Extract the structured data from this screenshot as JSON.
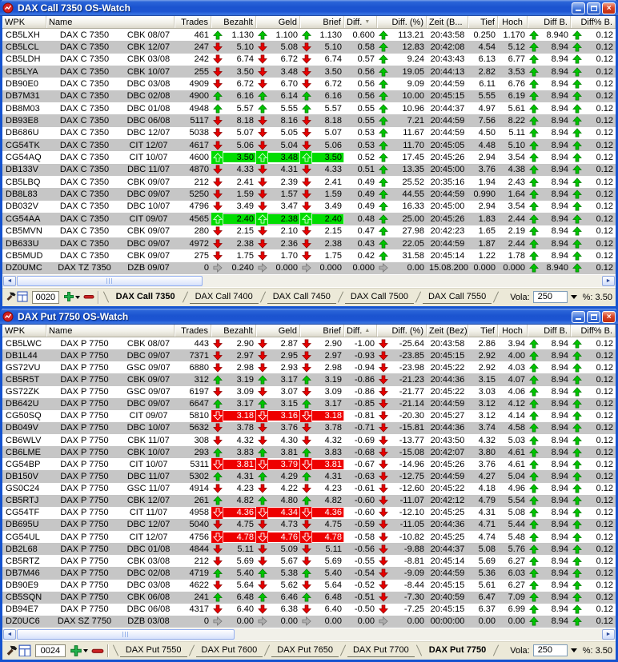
{
  "row_fields": [
    "wpk",
    "name",
    "issuer",
    "trades",
    "dir",
    "bezahlt",
    "geld",
    "brief",
    "diff",
    "diff_pct",
    "zeit",
    "tief",
    "hoch",
    "diff_b",
    "diff_pct_b",
    "highlight"
  ],
  "colors": {
    "up_arrow": "#00c400",
    "down_arrow": "#e60000",
    "neutral_arrow": "#aeaeae",
    "highlight_green": "#00dd00",
    "highlight_red": "#ee0000",
    "row_alt": "#c6c6c6",
    "titlebar_blue": "#1d55d2"
  },
  "icons": [
    "app-icon",
    "minimize",
    "maximize",
    "close",
    "hammer",
    "grid",
    "add",
    "remove",
    "scroll-left",
    "scroll-right",
    "up-arrow",
    "down-arrow",
    "right-arrow"
  ],
  "windows": [
    {
      "title": "DAX Call 7350 OS-Watch",
      "columns": {
        "wpk": "WPK",
        "name": "Name",
        "trades": "Trades",
        "bezahlt": "Bezahlt",
        "geld": "Geld",
        "brief": "Brief",
        "diff": "Diff.",
        "diff_pct": "Diff. (%)",
        "zeit": "Zeit (B...",
        "tief": "Tief",
        "hoch": "Hoch",
        "diff_b": "Diff B.",
        "diff_pct_b": "Diff% B."
      },
      "sort_indicator": "▼",
      "rows": [
        [
          "CB5LXH",
          "DAX C 7350",
          "CBK 08/07",
          "461",
          "up",
          "1.130",
          "1.100",
          "1.130",
          "0.600",
          "113.21",
          "20:43:58",
          "0.250",
          "1.170",
          "8.940",
          "0.12",
          ""
        ],
        [
          "CB5LCL",
          "DAX C 7350",
          "CBK 12/07",
          "247",
          "down",
          "5.10",
          "5.08",
          "5.10",
          "0.58",
          "12.83",
          "20:42:08",
          "4.54",
          "5.12",
          "8.94",
          "0.12",
          ""
        ],
        [
          "CB5LDH",
          "DAX C 7350",
          "CBK 03/08",
          "242",
          "down",
          "6.74",
          "6.72",
          "6.74",
          "0.57",
          "9.24",
          "20:43:43",
          "6.13",
          "6.77",
          "8.94",
          "0.12",
          ""
        ],
        [
          "CB5LYA",
          "DAX C 7350",
          "CBK 10/07",
          "255",
          "down",
          "3.50",
          "3.48",
          "3.50",
          "0.56",
          "19.05",
          "20:44:13",
          "2.82",
          "3.53",
          "8.94",
          "0.12",
          ""
        ],
        [
          "DB90E0",
          "DAX C 7350",
          "DBC 03/08",
          "4909",
          "down",
          "6.72",
          "6.70",
          "6.72",
          "0.56",
          "9.09",
          "20:44:59",
          "6.11",
          "6.76",
          "8.94",
          "0.12",
          ""
        ],
        [
          "DB7M31",
          "DAX C 7350",
          "DBC 02/08",
          "4900",
          "up",
          "6.16",
          "6.14",
          "6.16",
          "0.56",
          "10.00",
          "20:45:15",
          "5.55",
          "6.19",
          "8.94",
          "0.12",
          ""
        ],
        [
          "DB8M03",
          "DAX C 7350",
          "DBC 01/08",
          "4948",
          "up",
          "5.57",
          "5.55",
          "5.57",
          "0.55",
          "10.96",
          "20:44:37",
          "4.97",
          "5.61",
          "8.94",
          "0.12",
          ""
        ],
        [
          "DB93E8",
          "DAX C 7350",
          "DBC 06/08",
          "5117",
          "down",
          "8.18",
          "8.16",
          "8.18",
          "0.55",
          "7.21",
          "20:44:59",
          "7.56",
          "8.22",
          "8.94",
          "0.12",
          ""
        ],
        [
          "DB686U",
          "DAX C 7350",
          "DBC 12/07",
          "5038",
          "down",
          "5.07",
          "5.05",
          "5.07",
          "0.53",
          "11.67",
          "20:44:59",
          "4.50",
          "5.11",
          "8.94",
          "0.12",
          ""
        ],
        [
          "CG54TK",
          "DAX C 7350",
          "CIT 12/07",
          "4617",
          "down",
          "5.06",
          "5.04",
          "5.06",
          "0.53",
          "11.70",
          "20:45:05",
          "4.48",
          "5.10",
          "8.94",
          "0.12",
          ""
        ],
        [
          "CG54AQ",
          "DAX C 7350",
          "CIT 10/07",
          "4600",
          "up",
          "3.50",
          "3.48",
          "3.50",
          "0.52",
          "17.45",
          "20:45:26",
          "2.94",
          "3.54",
          "8.94",
          "0.12",
          "green"
        ],
        [
          "DB133V",
          "DAX C 7350",
          "DBC 11/07",
          "4870",
          "down",
          "4.33",
          "4.31",
          "4.33",
          "0.51",
          "13.35",
          "20:45:00",
          "3.76",
          "4.38",
          "8.94",
          "0.12",
          ""
        ],
        [
          "CB5LBQ",
          "DAX C 7350",
          "CBK 09/07",
          "212",
          "down",
          "2.41",
          "2.39",
          "2.41",
          "0.49",
          "25.52",
          "20:35:16",
          "1.94",
          "2.43",
          "8.94",
          "0.12",
          ""
        ],
        [
          "DB8L83",
          "DAX C 7350",
          "DBC 09/07",
          "5250",
          "down",
          "1.59",
          "1.57",
          "1.59",
          "0.49",
          "44.55",
          "20:44:59",
          "0.990",
          "1.64",
          "8.94",
          "0.12",
          ""
        ],
        [
          "DB032V",
          "DAX C 7350",
          "DBC 10/07",
          "4796",
          "down",
          "3.49",
          "3.47",
          "3.49",
          "0.49",
          "16.33",
          "20:45:00",
          "2.94",
          "3.54",
          "8.94",
          "0.12",
          ""
        ],
        [
          "CG54AA",
          "DAX C 7350",
          "CIT 09/07",
          "4565",
          "up",
          "2.40",
          "2.38",
          "2.40",
          "0.48",
          "25.00",
          "20:45:26",
          "1.83",
          "2.44",
          "8.94",
          "0.12",
          "green"
        ],
        [
          "CB5MVN",
          "DAX C 7350",
          "CBK 09/07",
          "280",
          "down",
          "2.15",
          "2.10",
          "2.15",
          "0.47",
          "27.98",
          "20:42:23",
          "1.65",
          "2.19",
          "8.94",
          "0.12",
          ""
        ],
        [
          "DB633U",
          "DAX C 7350",
          "DBC 09/07",
          "4972",
          "down",
          "2.38",
          "2.36",
          "2.38",
          "0.43",
          "22.05",
          "20:44:59",
          "1.87",
          "2.44",
          "8.94",
          "0.12",
          ""
        ],
        [
          "CB5MUD",
          "DAX C 7350",
          "CBK 09/07",
          "275",
          "down",
          "1.75",
          "1.70",
          "1.75",
          "0.42",
          "31.58",
          "20:45:14",
          "1.22",
          "1.78",
          "8.94",
          "0.12",
          ""
        ],
        [
          "DZ0UMC",
          "DAX TZ 7350",
          "DZB 09/07",
          "0",
          "right",
          "0.240",
          "0.000",
          "0.000",
          "0.000",
          "0.00",
          "15.08.200",
          "0.000",
          "0.000",
          "8.940",
          "0.12",
          ""
        ]
      ],
      "footer": {
        "counter": "0020",
        "tabs": [
          {
            "label": "DAX Call 7350",
            "active": true
          },
          {
            "label": "DAX Call 7400",
            "active": false
          },
          {
            "label": "DAX Call 7450",
            "active": false
          },
          {
            "label": "DAX Call 7500",
            "active": false
          },
          {
            "label": "DAX Call 7550",
            "active": false
          }
        ],
        "vola_label": "Vola:",
        "vola_value": "250",
        "pct_display": "%: 3.50"
      }
    },
    {
      "title": "DAX Put 7750 OS-Watch",
      "columns": {
        "wpk": "WPK",
        "name": "Name",
        "trades": "Trades",
        "bezahlt": "Bezahlt",
        "geld": "Geld",
        "brief": "Brief",
        "diff": "Diff.",
        "diff_pct": "Diff. (%)",
        "zeit": "Zeit (Bez)",
        "tief": "Tief",
        "hoch": "Hoch",
        "diff_b": "Diff B.",
        "diff_pct_b": "Diff% B."
      },
      "sort_indicator": "▲",
      "rows": [
        [
          "CB5LWC",
          "DAX P 7750",
          "CBK 08/07",
          "443",
          "down",
          "2.90",
          "2.87",
          "2.90",
          "-1.00",
          "-25.64",
          "20:43:58",
          "2.86",
          "3.94",
          "8.94",
          "0.12",
          ""
        ],
        [
          "DB1L44",
          "DAX P 7750",
          "DBC 09/07",
          "7371",
          "down",
          "2.97",
          "2.95",
          "2.97",
          "-0.93",
          "-23.85",
          "20:45:15",
          "2.92",
          "4.00",
          "8.94",
          "0.12",
          ""
        ],
        [
          "GS72VU",
          "DAX P 7750",
          "GSC 09/07",
          "6880",
          "down",
          "2.98",
          "2.93",
          "2.98",
          "-0.94",
          "-23.98",
          "20:45:22",
          "2.92",
          "4.03",
          "8.94",
          "0.12",
          ""
        ],
        [
          "CB5R5T",
          "DAX P 7750",
          "CBK 09/07",
          "312",
          "up",
          "3.19",
          "3.17",
          "3.19",
          "-0.86",
          "-21.23",
          "20:44:36",
          "3.15",
          "4.07",
          "8.94",
          "0.12",
          ""
        ],
        [
          "GS72ZK",
          "DAX P 7750",
          "GSC 09/07",
          "6197",
          "down",
          "3.09",
          "3.07",
          "3.09",
          "-0.86",
          "-21.77",
          "20:45:22",
          "3.03",
          "4.06",
          "8.94",
          "0.12",
          ""
        ],
        [
          "DB642U",
          "DAX P 7750",
          "DBC 09/07",
          "6647",
          "up",
          "3.17",
          "3.15",
          "3.17",
          "-0.85",
          "-21.14",
          "20:44:59",
          "3.12",
          "4.12",
          "8.94",
          "0.12",
          ""
        ],
        [
          "CG50SQ",
          "DAX P 7750",
          "CIT 09/07",
          "5810",
          "down",
          "3.18",
          "3.16",
          "3.18",
          "-0.81",
          "-20.30",
          "20:45:27",
          "3.12",
          "4.14",
          "8.94",
          "0.12",
          "red"
        ],
        [
          "DB049V",
          "DAX P 7750",
          "DBC 10/07",
          "5632",
          "down",
          "3.78",
          "3.76",
          "3.78",
          "-0.71",
          "-15.81",
          "20:44:36",
          "3.74",
          "4.58",
          "8.94",
          "0.12",
          ""
        ],
        [
          "CB6WLV",
          "DAX P 7750",
          "CBK 11/07",
          "308",
          "down",
          "4.32",
          "4.30",
          "4.32",
          "-0.69",
          "-13.77",
          "20:43:50",
          "4.32",
          "5.03",
          "8.94",
          "0.12",
          ""
        ],
        [
          "CB6LME",
          "DAX P 7750",
          "CBK 10/07",
          "293",
          "up",
          "3.83",
          "3.81",
          "3.83",
          "-0.68",
          "-15.08",
          "20:42:07",
          "3.80",
          "4.61",
          "8.94",
          "0.12",
          ""
        ],
        [
          "CG54BP",
          "DAX P 7750",
          "CIT 10/07",
          "5311",
          "down",
          "3.81",
          "3.79",
          "3.81",
          "-0.67",
          "-14.96",
          "20:45:26",
          "3.76",
          "4.61",
          "8.94",
          "0.12",
          "red"
        ],
        [
          "DB150V",
          "DAX P 7750",
          "DBC 11/07",
          "5302",
          "up",
          "4.31",
          "4.29",
          "4.31",
          "-0.63",
          "-12.75",
          "20:44:59",
          "4.27",
          "5.04",
          "8.94",
          "0.12",
          ""
        ],
        [
          "GS0C24",
          "DAX P 7750",
          "GSC 11/07",
          "4914",
          "down",
          "4.23",
          "4.22",
          "4.23",
          "-0.61",
          "-12.60",
          "20:45:22",
          "4.18",
          "4.96",
          "8.94",
          "0.12",
          ""
        ],
        [
          "CB5RTJ",
          "DAX P 7750",
          "CBK 12/07",
          "261",
          "up",
          "4.82",
          "4.80",
          "4.82",
          "-0.60",
          "-11.07",
          "20:42:12",
          "4.79",
          "5.54",
          "8.94",
          "0.12",
          ""
        ],
        [
          "CG54TF",
          "DAX P 7750",
          "CIT 11/07",
          "4958",
          "down",
          "4.36",
          "4.34",
          "4.36",
          "-0.60",
          "-12.10",
          "20:45:25",
          "4.31",
          "5.08",
          "8.94",
          "0.12",
          "red"
        ],
        [
          "DB695U",
          "DAX P 7750",
          "DBC 12/07",
          "5040",
          "down",
          "4.75",
          "4.73",
          "4.75",
          "-0.59",
          "-11.05",
          "20:44:36",
          "4.71",
          "5.44",
          "8.94",
          "0.12",
          ""
        ],
        [
          "CG54UL",
          "DAX P 7750",
          "CIT 12/07",
          "4756",
          "down",
          "4.78",
          "4.76",
          "4.78",
          "-0.58",
          "-10.82",
          "20:45:25",
          "4.74",
          "5.48",
          "8.94",
          "0.12",
          "red"
        ],
        [
          "DB2L68",
          "DAX P 7750",
          "DBC 01/08",
          "4844",
          "down",
          "5.11",
          "5.09",
          "5.11",
          "-0.56",
          "-9.88",
          "20:44:37",
          "5.08",
          "5.76",
          "8.94",
          "0.12",
          ""
        ],
        [
          "CB5RTZ",
          "DAX P 7750",
          "CBK 03/08",
          "212",
          "down",
          "5.69",
          "5.67",
          "5.69",
          "-0.55",
          "-8.81",
          "20:45:14",
          "5.69",
          "6.27",
          "8.94",
          "0.12",
          ""
        ],
        [
          "DB7M46",
          "DAX P 7750",
          "DBC 02/08",
          "4719",
          "up",
          "5.40",
          "5.38",
          "5.40",
          "-0.54",
          "-9.09",
          "20:44:59",
          "5.36",
          "6.03",
          "8.94",
          "0.12",
          ""
        ],
        [
          "DB90E9",
          "DAX P 7750",
          "DBC 03/08",
          "4622",
          "down",
          "5.64",
          "5.62",
          "5.64",
          "-0.52",
          "-8.44",
          "20:45:15",
          "5.61",
          "6.27",
          "8.94",
          "0.12",
          ""
        ],
        [
          "CB5SQN",
          "DAX P 7750",
          "CBK 06/08",
          "241",
          "up",
          "6.48",
          "6.46",
          "6.48",
          "-0.51",
          "-7.30",
          "20:40:59",
          "6.47",
          "7.09",
          "8.94",
          "0.12",
          ""
        ],
        [
          "DB94E7",
          "DAX P 7750",
          "DBC 06/08",
          "4317",
          "down",
          "6.40",
          "6.38",
          "6.40",
          "-0.50",
          "-7.25",
          "20:45:15",
          "6.37",
          "6.99",
          "8.94",
          "0.12",
          ""
        ],
        [
          "DZ0UC6",
          "DAX SZ 7750",
          "DZB 03/08",
          "0",
          "right",
          "0.00",
          "0.00",
          "0.00",
          "0.00",
          "0.00",
          "00:00:00",
          "0.00",
          "0.00",
          "8.94",
          "0.12",
          ""
        ]
      ],
      "footer": {
        "counter": "0024",
        "tabs": [
          {
            "label": "DAX Put 7550",
            "active": false
          },
          {
            "label": "DAX Put 7600",
            "active": false
          },
          {
            "label": "DAX Put 7650",
            "active": false
          },
          {
            "label": "DAX Put 7700",
            "active": false
          },
          {
            "label": "DAX Put 7750",
            "active": true
          }
        ],
        "vola_label": "Vola:",
        "vola_value": "250",
        "pct_display": "%: 3.50"
      }
    }
  ]
}
